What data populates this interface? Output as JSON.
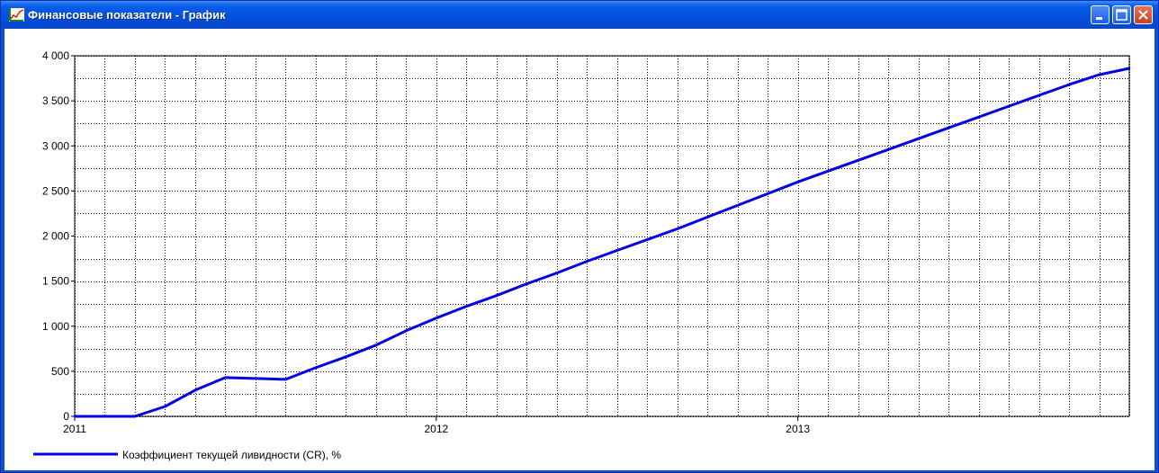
{
  "window": {
    "title": "Финансовые показатели - График",
    "icon": "chart-icon",
    "buttons": {
      "minimize": "minimize-icon",
      "maximize": "maximize-icon",
      "close": "close-icon"
    }
  },
  "colors": {
    "series": "#0000e6",
    "grid": "#000000",
    "titlebar": "#0a5ee8"
  },
  "chart_data": {
    "type": "line",
    "title": "",
    "xlabel": "",
    "ylabel": "",
    "x_ticks": [
      "2011",
      "2012",
      "2013"
    ],
    "y_ticks": [
      "0",
      "500",
      "1 000",
      "1 500",
      "2 000",
      "2 500",
      "3 000",
      "3 500",
      "4 000"
    ],
    "ylim": [
      0,
      4000
    ],
    "xlim": [
      "2011-01",
      "2013-12"
    ],
    "grid": true,
    "legend_position": "bottom-left",
    "series": [
      {
        "name": "Коэффициент текущей ливидности (CR), %",
        "x": [
          "2011-01",
          "2011-02",
          "2011-03",
          "2011-04",
          "2011-05",
          "2011-06",
          "2011-07",
          "2011-08",
          "2011-09",
          "2011-10",
          "2011-11",
          "2011-12",
          "2012-01",
          "2012-02",
          "2012-03",
          "2012-04",
          "2012-05",
          "2012-06",
          "2012-07",
          "2012-08",
          "2012-09",
          "2012-10",
          "2012-11",
          "2012-12",
          "2013-01",
          "2013-02",
          "2013-03",
          "2013-04",
          "2013-05",
          "2013-06",
          "2013-07",
          "2013-08",
          "2013-09",
          "2013-10",
          "2013-11",
          "2013-12"
        ],
        "values": [
          0,
          0,
          0,
          110,
          290,
          430,
          420,
          410,
          540,
          660,
          790,
          950,
          1090,
          1220,
          1340,
          1470,
          1590,
          1720,
          1840,
          1960,
          2080,
          2210,
          2340,
          2470,
          2600,
          2720,
          2840,
          2960,
          3080,
          3200,
          3320,
          3440,
          3560,
          3680,
          3790,
          3860
        ]
      }
    ]
  }
}
